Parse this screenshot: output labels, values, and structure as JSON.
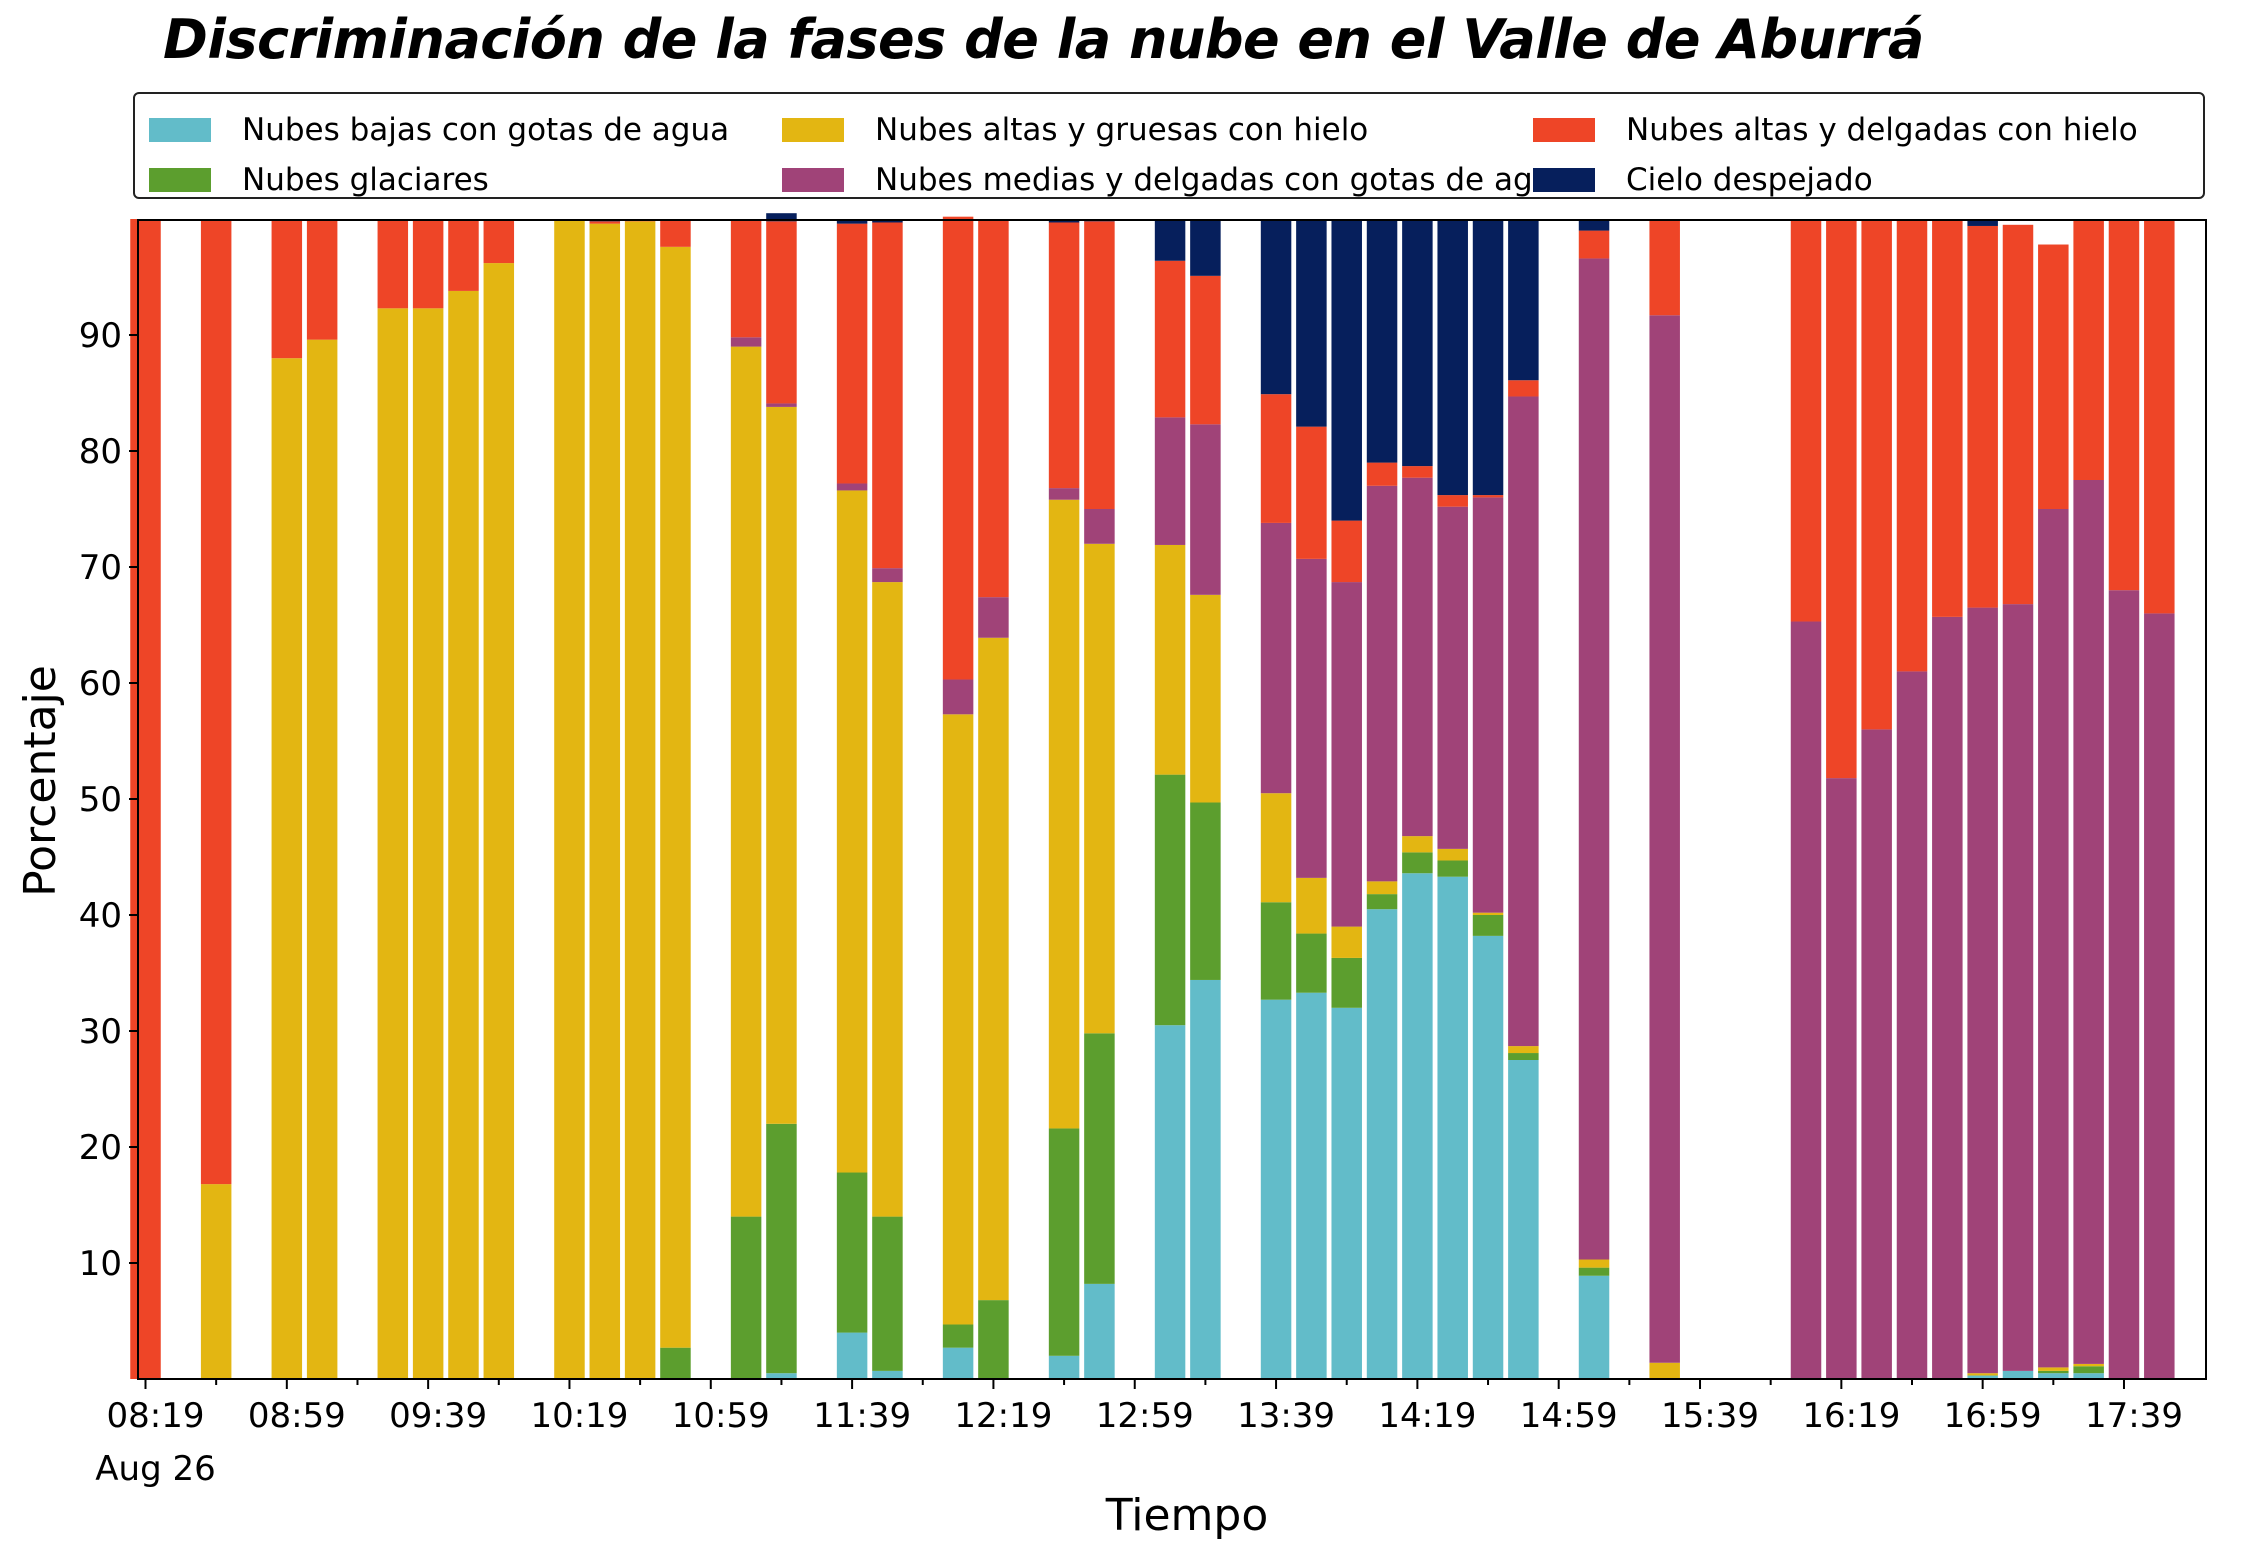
{
  "chart_data": {
    "type": "bar",
    "stacked": true,
    "title": "Discriminación de la fases de la nube en el Valle de Aburrá",
    "xlabel": "Tiempo",
    "ylabel": "Porcentaje",
    "ylim": [
      0,
      100
    ],
    "yticks": [
      10,
      20,
      30,
      40,
      50,
      60,
      70,
      80,
      90
    ],
    "x_tick_labels": [
      "08:19",
      "08:59",
      "09:39",
      "10:19",
      "10:59",
      "11:39",
      "12:19",
      "12:59",
      "13:39",
      "14:19",
      "14:59",
      "15:39",
      "16:19",
      "16:59",
      "17:39"
    ],
    "x_date_label": "Aug 26",
    "x": [
      "08:19",
      "08:29",
      "08:39",
      "08:49",
      "08:59",
      "09:09",
      "09:19",
      "09:29",
      "09:39",
      "09:49",
      "09:59",
      "10:09",
      "10:19",
      "10:29",
      "10:39",
      "10:49",
      "10:59",
      "11:09",
      "11:19",
      "11:29",
      "11:39",
      "11:49",
      "11:59",
      "12:09",
      "12:19",
      "12:29",
      "12:39",
      "12:49",
      "12:59",
      "13:09",
      "13:19",
      "13:29",
      "13:39",
      "13:49",
      "13:59",
      "14:09",
      "14:19",
      "14:29",
      "14:39",
      "14:49",
      "14:59",
      "15:09",
      "15:19",
      "15:29",
      "15:39",
      "15:49",
      "15:59",
      "16:09",
      "16:19",
      "16:29",
      "16:39",
      "16:49",
      "16:59",
      "17:09",
      "17:19",
      "17:29",
      "17:39",
      "17:49"
    ],
    "legend_position": "top",
    "series": [
      {
        "name": "Nubes bajas con gotas de agua",
        "color": "#62bcc9",
        "values": [
          0,
          null,
          0,
          null,
          0,
          0,
          null,
          0,
          0,
          0,
          0,
          null,
          0,
          0,
          0,
          0,
          null,
          0,
          0.5,
          null,
          4,
          0.7,
          null,
          2.7,
          0,
          null,
          2,
          8.2,
          null,
          30.5,
          34.4,
          null,
          32.7,
          33.3,
          32,
          40.5,
          43.6,
          43.3,
          38.2,
          27.5,
          null,
          8.9,
          null,
          0,
          null,
          null,
          null,
          0,
          0,
          0,
          0,
          0,
          0.3,
          0.7,
          0.5,
          0.5,
          0,
          0
        ]
      },
      {
        "name": "Nubes glaciares",
        "color": "#5c9e2e",
        "values": [
          0,
          null,
          0,
          null,
          0,
          0,
          null,
          0,
          0,
          0,
          0,
          null,
          0,
          0,
          0,
          2.7,
          null,
          14,
          21.5,
          null,
          13.8,
          13.3,
          null,
          2,
          6.8,
          null,
          19.6,
          21.6,
          null,
          21.6,
          15.3,
          null,
          8.4,
          5.1,
          4.3,
          1.3,
          1.8,
          1.4,
          1.8,
          0.6,
          null,
          0.7,
          null,
          0,
          null,
          null,
          null,
          0,
          0,
          0,
          0,
          0,
          0,
          0,
          0.2,
          0.6,
          0,
          0
        ]
      },
      {
        "name": "Nubes altas y gruesas con hielo",
        "color": "#e3b612",
        "values": [
          0,
          null,
          16.8,
          null,
          88,
          89.6,
          null,
          92.3,
          92.3,
          93.8,
          96.2,
          null,
          100,
          99.6,
          99.8,
          94.9,
          null,
          75,
          61.8,
          null,
          58.8,
          54.7,
          null,
          52.6,
          57.1,
          null,
          54.2,
          42.2,
          null,
          19.8,
          17.9,
          null,
          9.4,
          4.8,
          2.7,
          1.1,
          1.4,
          1,
          0.2,
          0.6,
          null,
          0.7,
          null,
          1.4,
          null,
          null,
          null,
          0,
          0,
          0,
          0,
          0,
          0.2,
          0,
          0.3,
          0.2,
          0,
          0
        ]
      },
      {
        "name": "Nubes medias y delgadas con gotas de agua",
        "color": "#a04378",
        "values": [
          0,
          null,
          0,
          null,
          0,
          0,
          null,
          0,
          0,
          0,
          0,
          null,
          0,
          0,
          0,
          0,
          null,
          0.8,
          0.3,
          null,
          0.6,
          1.2,
          null,
          3,
          3.5,
          null,
          1,
          3,
          null,
          11,
          14.7,
          null,
          23.3,
          27.5,
          29.7,
          34.1,
          30.9,
          29.5,
          35.8,
          56,
          null,
          86.3,
          null,
          90.3,
          null,
          null,
          null,
          65.3,
          51.8,
          56,
          61,
          65.7,
          66,
          66.1,
          74,
          76.2,
          68,
          66
        ]
      },
      {
        "name": "Nubes altas y delgadas con hielo",
        "color": "#ee4527",
        "values": [
          100,
          null,
          83.2,
          null,
          12,
          10.4,
          null,
          7.7,
          7.7,
          6.2,
          3.8,
          null,
          0,
          0.2,
          0.2,
          2.4,
          null,
          10.2,
          15.7,
          null,
          22.4,
          29.8,
          null,
          39.9,
          32.6,
          null,
          22.9,
          24.8,
          null,
          13.5,
          12.8,
          null,
          11.1,
          11.4,
          5.3,
          2,
          1,
          1,
          0.2,
          1.4,
          null,
          2.4,
          null,
          8.3,
          null,
          null,
          null,
          34.7,
          48.2,
          44,
          39,
          34.3,
          32.9,
          32.7,
          22.8,
          22.5,
          32,
          34
        ]
      },
      {
        "name": "Cielo despejado",
        "color": "#061f5c",
        "values": [
          0,
          null,
          0,
          null,
          0,
          0,
          null,
          0,
          0,
          0,
          0,
          null,
          0,
          0.2,
          0,
          0,
          null,
          0,
          0.7,
          null,
          0.4,
          0.3,
          null,
          0,
          0,
          null,
          0.3,
          0.2,
          null,
          3.6,
          4.9,
          null,
          15.1,
          17.9,
          26,
          21,
          21.3,
          23.8,
          23.8,
          13.9,
          null,
          0.9,
          null,
          0,
          null,
          null,
          null,
          0,
          0,
          0,
          0,
          0,
          0.6,
          0,
          0,
          0,
          0,
          0
        ]
      }
    ]
  }
}
